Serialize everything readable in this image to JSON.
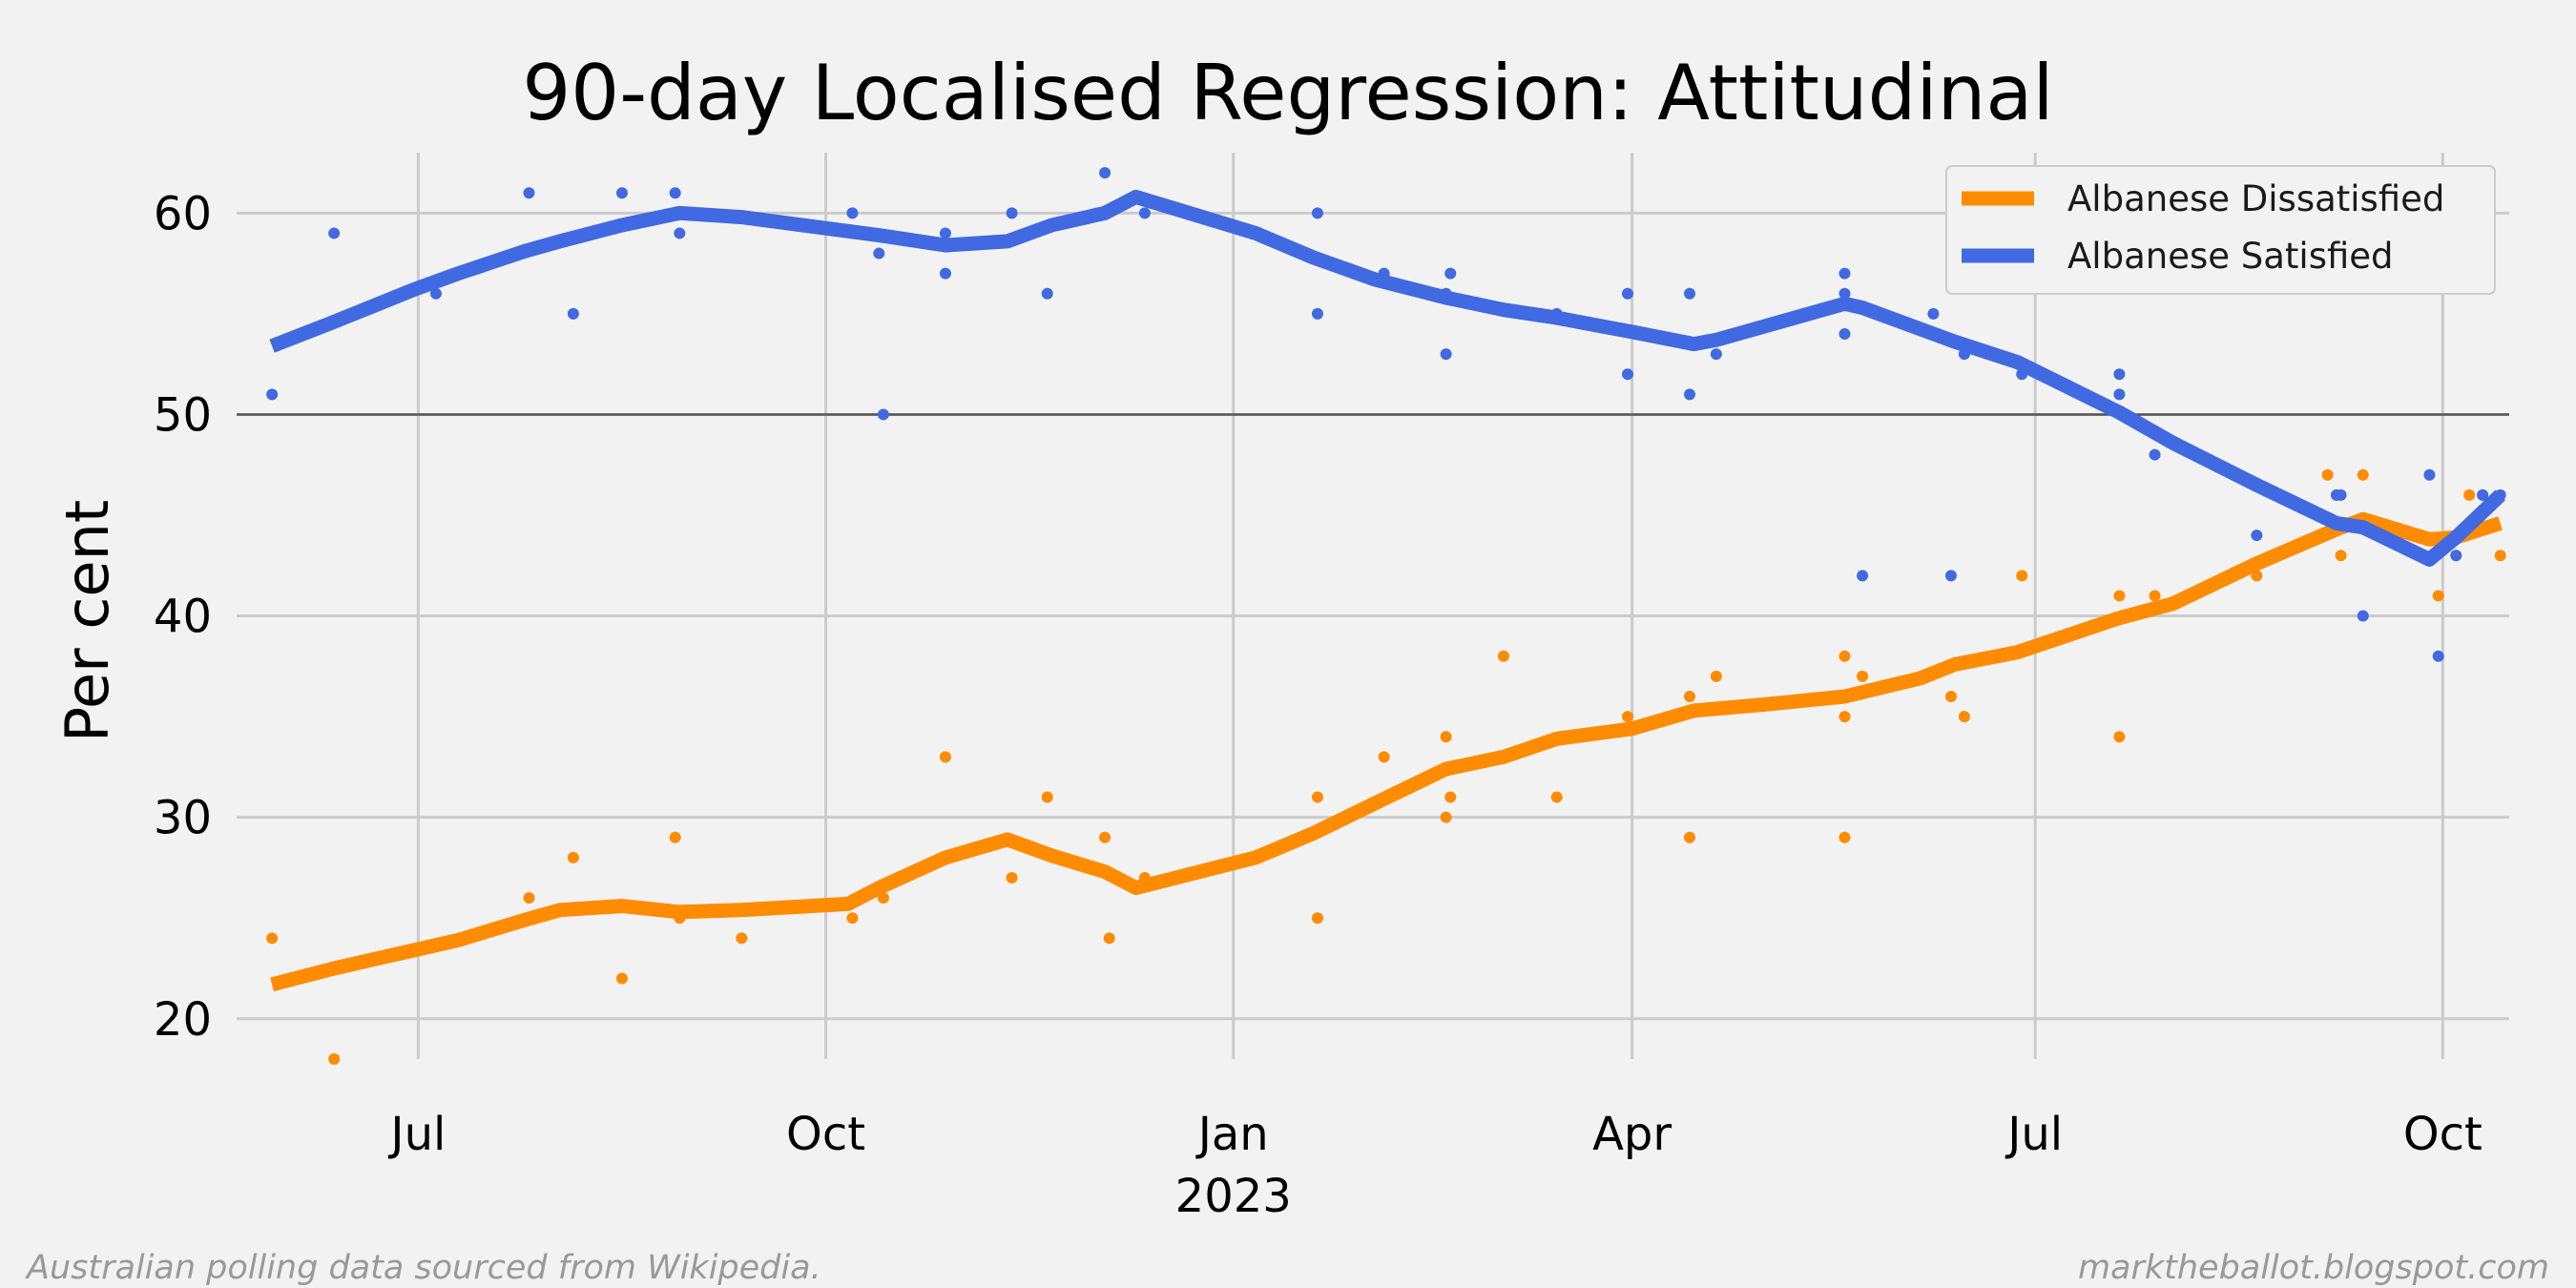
{
  "chart_data": {
    "type": "line",
    "title": "90-day Localised Regression: Attitudinal",
    "ylabel": "Per cent",
    "xlabel": "",
    "xlim": [
      "2022-05-21",
      "2023-10-16"
    ],
    "ylim": [
      18,
      63
    ],
    "yticks": [
      20,
      30,
      40,
      50,
      60
    ],
    "xticks": [
      {
        "date": "2022-07-01",
        "label": "Jul",
        "sublabel": ""
      },
      {
        "date": "2022-10-01",
        "label": "Oct",
        "sublabel": ""
      },
      {
        "date": "2023-01-01",
        "label": "Jan",
        "sublabel": "2023"
      },
      {
        "date": "2023-04-01",
        "label": "Apr",
        "sublabel": ""
      },
      {
        "date": "2023-07-01",
        "label": "Jul",
        "sublabel": ""
      },
      {
        "date": "2023-10-01",
        "label": "Oct",
        "sublabel": ""
      }
    ],
    "reference_line": 50,
    "grid": true,
    "legend_position": "top-right",
    "series": [
      {
        "name": "Albanese Dissatisfied",
        "color": "#ff8c00",
        "line": [
          [
            "2022-05-29",
            21.7
          ],
          [
            "2022-06-12",
            22.5
          ],
          [
            "2022-06-30",
            23.4
          ],
          [
            "2022-07-10",
            23.9
          ],
          [
            "2022-07-25",
            24.9
          ],
          [
            "2022-08-02",
            25.4
          ],
          [
            "2022-08-16",
            25.6
          ],
          [
            "2022-08-29",
            25.3
          ],
          [
            "2022-09-12",
            25.4
          ],
          [
            "2022-10-06",
            25.7
          ],
          [
            "2022-10-13",
            26.5
          ],
          [
            "2022-10-28",
            28.0
          ],
          [
            "2022-11-11",
            28.9
          ],
          [
            "2022-11-21",
            28.1
          ],
          [
            "2022-12-03",
            27.3
          ],
          [
            "2022-12-10",
            26.5
          ],
          [
            "2023-01-06",
            28.0
          ],
          [
            "2023-01-19",
            29.2
          ],
          [
            "2023-02-02",
            30.7
          ],
          [
            "2023-02-18",
            32.4
          ],
          [
            "2023-03-03",
            33.0
          ],
          [
            "2023-03-15",
            33.9
          ],
          [
            "2023-04-01",
            34.4
          ],
          [
            "2023-04-15",
            35.3
          ],
          [
            "2023-05-01",
            35.6
          ],
          [
            "2023-05-19",
            36.0
          ],
          [
            "2023-06-05",
            36.9
          ],
          [
            "2023-06-13",
            37.6
          ],
          [
            "2023-06-27",
            38.2
          ],
          [
            "2023-07-20",
            39.9
          ],
          [
            "2023-08-01",
            40.6
          ],
          [
            "2023-08-20",
            42.6
          ],
          [
            "2023-09-07",
            44.3
          ],
          [
            "2023-09-13",
            44.8
          ],
          [
            "2023-09-28",
            43.8
          ],
          [
            "2023-10-04",
            43.9
          ],
          [
            "2023-10-14",
            44.6
          ]
        ],
        "points": [
          [
            "2022-05-29",
            24
          ],
          [
            "2022-06-12",
            18
          ],
          [
            "2022-07-26",
            26
          ],
          [
            "2022-08-05",
            28
          ],
          [
            "2022-08-16",
            22
          ],
          [
            "2022-08-28",
            29
          ],
          [
            "2022-08-29",
            25
          ],
          [
            "2022-09-12",
            24
          ],
          [
            "2022-10-07",
            25
          ],
          [
            "2022-10-14",
            26
          ],
          [
            "2022-10-28",
            33
          ],
          [
            "2022-11-12",
            27
          ],
          [
            "2022-11-20",
            31
          ],
          [
            "2022-12-03",
            29
          ],
          [
            "2022-12-04",
            24
          ],
          [
            "2022-12-12",
            27
          ],
          [
            "2023-01-20",
            25
          ],
          [
            "2023-01-20",
            31
          ],
          [
            "2023-02-04",
            33
          ],
          [
            "2023-02-18",
            30
          ],
          [
            "2023-02-19",
            31
          ],
          [
            "2023-02-18",
            34
          ],
          [
            "2023-03-03",
            38
          ],
          [
            "2023-03-15",
            31
          ],
          [
            "2023-03-31",
            35
          ],
          [
            "2023-04-14",
            36
          ],
          [
            "2023-04-14",
            29
          ],
          [
            "2023-04-20",
            37
          ],
          [
            "2023-05-19",
            38
          ],
          [
            "2023-05-19",
            29
          ],
          [
            "2023-05-19",
            35
          ],
          [
            "2023-05-23",
            37
          ],
          [
            "2023-06-12",
            36
          ],
          [
            "2023-06-15",
            35
          ],
          [
            "2023-06-28",
            42
          ],
          [
            "2023-07-20",
            41
          ],
          [
            "2023-07-20",
            34
          ],
          [
            "2023-07-28",
            41
          ],
          [
            "2023-08-20",
            42
          ],
          [
            "2023-09-05",
            47
          ],
          [
            "2023-09-07",
            46
          ],
          [
            "2023-09-08",
            43
          ],
          [
            "2023-09-13",
            47
          ],
          [
            "2023-09-30",
            41
          ],
          [
            "2023-10-04",
            43
          ],
          [
            "2023-10-07",
            46
          ],
          [
            "2023-10-10",
            46
          ],
          [
            "2023-10-14",
            43
          ]
        ]
      },
      {
        "name": "Albanese Satisfied",
        "color": "#4169e1",
        "line": [
          [
            "2022-05-29",
            53.4
          ],
          [
            "2022-06-12",
            54.6
          ],
          [
            "2022-06-30",
            56.2
          ],
          [
            "2022-07-10",
            57.0
          ],
          [
            "2022-07-25",
            58.1
          ],
          [
            "2022-08-02",
            58.6
          ],
          [
            "2022-08-16",
            59.4
          ],
          [
            "2022-08-29",
            60.0
          ],
          [
            "2022-09-12",
            59.8
          ],
          [
            "2022-10-06",
            59.1
          ],
          [
            "2022-10-13",
            58.9
          ],
          [
            "2022-10-28",
            58.4
          ],
          [
            "2022-11-11",
            58.6
          ],
          [
            "2022-11-21",
            59.4
          ],
          [
            "2022-12-03",
            60.0
          ],
          [
            "2022-12-10",
            60.8
          ],
          [
            "2023-01-06",
            59.0
          ],
          [
            "2023-01-19",
            57.8
          ],
          [
            "2023-02-02",
            56.7
          ],
          [
            "2023-02-18",
            55.8
          ],
          [
            "2023-03-03",
            55.2
          ],
          [
            "2023-03-15",
            54.8
          ],
          [
            "2023-04-01",
            54.1
          ],
          [
            "2023-04-15",
            53.5
          ],
          [
            "2023-04-20",
            53.7
          ],
          [
            "2023-05-19",
            55.5
          ],
          [
            "2023-05-23",
            55.3
          ],
          [
            "2023-06-13",
            53.6
          ],
          [
            "2023-06-27",
            52.6
          ],
          [
            "2023-07-20",
            50.1
          ],
          [
            "2023-08-01",
            48.6
          ],
          [
            "2023-08-20",
            46.5
          ],
          [
            "2023-09-07",
            44.6
          ],
          [
            "2023-09-13",
            44.4
          ],
          [
            "2023-09-28",
            42.8
          ],
          [
            "2023-10-04",
            43.9
          ],
          [
            "2023-10-14",
            46.0
          ]
        ],
        "points": [
          [
            "2022-05-29",
            51
          ],
          [
            "2022-06-12",
            59
          ],
          [
            "2022-07-05",
            56
          ],
          [
            "2022-07-26",
            61
          ],
          [
            "2022-08-05",
            55
          ],
          [
            "2022-08-16",
            61
          ],
          [
            "2022-08-28",
            61
          ],
          [
            "2022-08-29",
            59
          ],
          [
            "2022-10-07",
            60
          ],
          [
            "2022-10-13",
            58
          ],
          [
            "2022-10-14",
            50
          ],
          [
            "2022-10-28",
            59
          ],
          [
            "2022-10-28",
            57
          ],
          [
            "2022-11-12",
            60
          ],
          [
            "2022-11-20",
            56
          ],
          [
            "2022-12-03",
            62
          ],
          [
            "2022-12-12",
            60
          ],
          [
            "2023-01-20",
            60
          ],
          [
            "2023-01-20",
            55
          ],
          [
            "2023-02-04",
            57
          ],
          [
            "2023-02-18",
            56
          ],
          [
            "2023-02-19",
            57
          ],
          [
            "2023-02-18",
            53
          ],
          [
            "2023-03-15",
            55
          ],
          [
            "2023-03-31",
            56
          ],
          [
            "2023-03-31",
            52
          ],
          [
            "2023-04-14",
            56
          ],
          [
            "2023-04-14",
            51
          ],
          [
            "2023-04-20",
            53
          ],
          [
            "2023-05-19",
            57
          ],
          [
            "2023-05-19",
            56
          ],
          [
            "2023-05-19",
            54
          ],
          [
            "2023-05-23",
            42
          ],
          [
            "2023-06-08",
            55
          ],
          [
            "2023-06-15",
            53
          ],
          [
            "2023-06-12",
            42
          ],
          [
            "2023-06-28",
            52
          ],
          [
            "2023-07-20",
            52
          ],
          [
            "2023-07-20",
            51
          ],
          [
            "2023-07-28",
            48
          ],
          [
            "2023-08-20",
            44
          ],
          [
            "2023-09-07",
            46
          ],
          [
            "2023-09-08",
            46
          ],
          [
            "2023-09-13",
            40
          ],
          [
            "2023-09-28",
            47
          ],
          [
            "2023-09-30",
            38
          ],
          [
            "2023-10-04",
            43
          ],
          [
            "2023-10-10",
            46
          ],
          [
            "2023-10-14",
            46
          ]
        ]
      }
    ]
  },
  "footer": {
    "source": "Australian polling data sourced from Wikipedia.",
    "site": "marktheballot.blogspot.com"
  }
}
